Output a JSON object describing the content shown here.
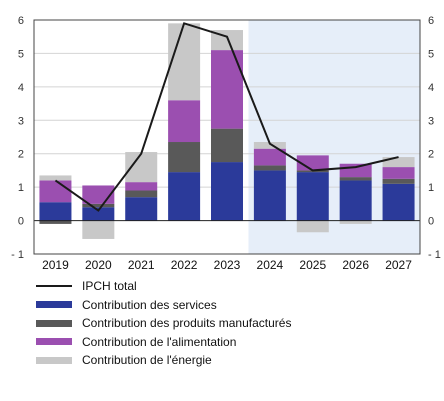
{
  "chart_data": {
    "type": "bar",
    "stacked": true,
    "categories": [
      "2019",
      "2020",
      "2021",
      "2022",
      "2023",
      "2024",
      "2025",
      "2026",
      "2027"
    ],
    "projection_start": "2024",
    "ylim": [
      -1,
      6
    ],
    "yticks": [
      "6",
      "5",
      "4",
      "3",
      "2",
      "1",
      "0",
      "- 1"
    ],
    "right_axis_ticks": [
      "6",
      "5",
      "4",
      "3",
      "2",
      "1",
      "0",
      "- 1"
    ],
    "grid": true,
    "series": [
      {
        "name": "Contribution des services",
        "color": "#2b3a9a",
        "values": [
          0.55,
          0.4,
          0.7,
          1.45,
          1.75,
          1.5,
          1.45,
          1.2,
          1.1
        ]
      },
      {
        "name": "Contribution des produits manufacturés",
        "color": "#595959",
        "values": [
          -0.1,
          0.1,
          0.2,
          0.9,
          1.0,
          0.15,
          0.05,
          0.1,
          0.15
        ]
      },
      {
        "name": "Contribution de l'alimentation",
        "color": "#9b4fb0",
        "values": [
          0.65,
          0.55,
          0.25,
          1.25,
          2.35,
          0.5,
          0.45,
          0.4,
          0.35
        ]
      },
      {
        "name": "Contribution de l'énergie",
        "color": "#c8c8c8",
        "values": [
          0.15,
          -0.55,
          0.9,
          2.3,
          0.6,
          0.2,
          -0.35,
          -0.1,
          0.3
        ]
      }
    ],
    "line": {
      "name": "IPCH total",
      "color": "#1a1a1a",
      "values": [
        1.2,
        0.3,
        2.0,
        5.9,
        5.5,
        2.3,
        1.5,
        1.6,
        1.9
      ]
    },
    "legend_placement": "bottom"
  }
}
